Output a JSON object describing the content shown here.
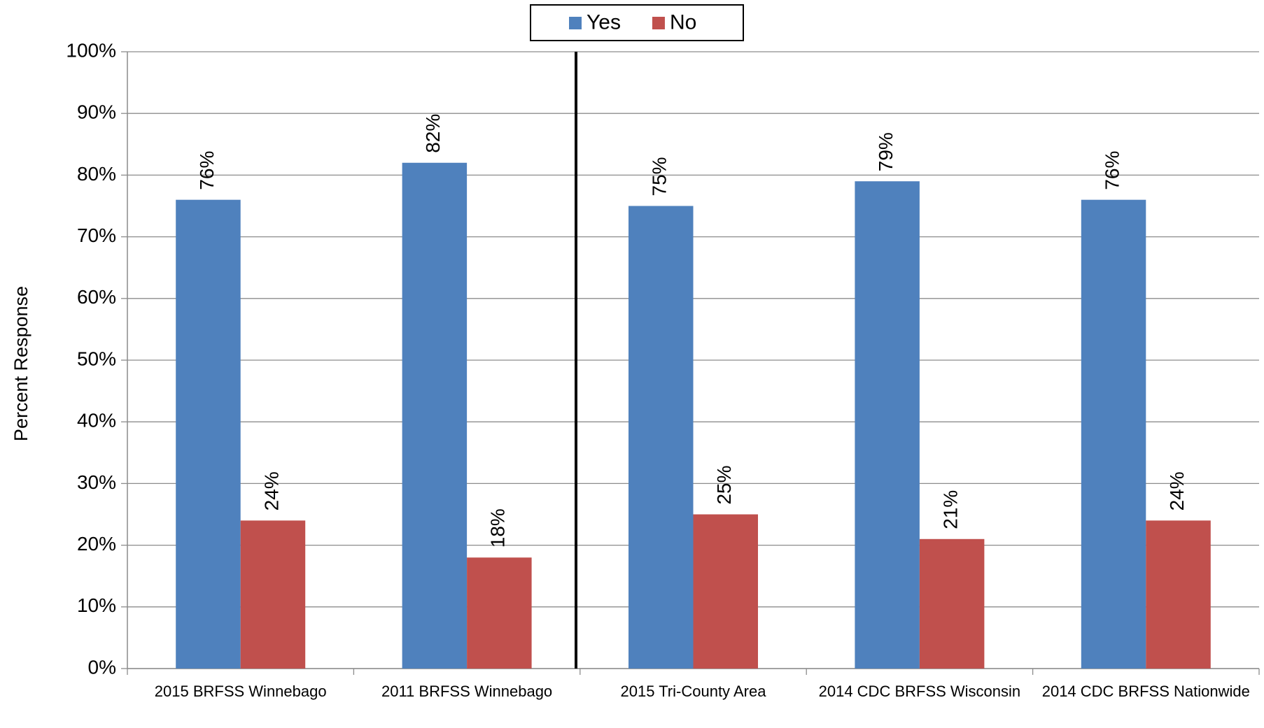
{
  "chart_data": {
    "type": "bar",
    "y_label": "Percent Response",
    "categories": [
      "2015 BRFSS Winnebago",
      "2011 BRFSS Winnebago",
      "2015 Tri-County Area",
      "2014 CDC BRFSS Wisconsin",
      "2014 CDC BRFSS Nationwide"
    ],
    "series": [
      {
        "name": "Yes",
        "color": "#4f81bd",
        "values": [
          76,
          82,
          75,
          79,
          76
        ],
        "value_labels": [
          "76%",
          "82%",
          "75%",
          "79%",
          "76%"
        ]
      },
      {
        "name": "No",
        "color": "#c0504d",
        "values": [
          24,
          18,
          25,
          21,
          24
        ],
        "value_labels": [
          "24%",
          "18%",
          "25%",
          "21%",
          "24%"
        ]
      }
    ],
    "ylim": [
      0,
      100
    ],
    "yticks": [
      {
        "value": 0,
        "label": "0%"
      },
      {
        "value": 10,
        "label": "10%"
      },
      {
        "value": 20,
        "label": "20%"
      },
      {
        "value": 30,
        "label": "30%"
      },
      {
        "value": 40,
        "label": "40%"
      },
      {
        "value": 50,
        "label": "50%"
      },
      {
        "value": 60,
        "label": "60%"
      },
      {
        "value": 70,
        "label": "70%"
      },
      {
        "value": 80,
        "label": "80%"
      },
      {
        "value": 90,
        "label": "90%"
      },
      {
        "value": 100,
        "label": "100%"
      }
    ],
    "grid": true,
    "legend": "top"
  }
}
